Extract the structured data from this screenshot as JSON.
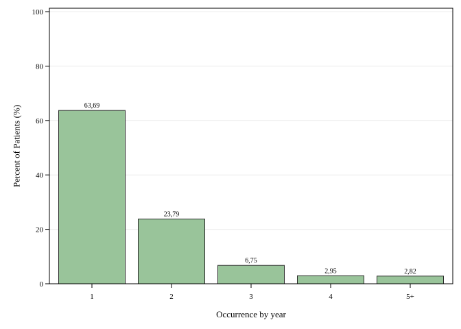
{
  "chart_data": {
    "type": "bar",
    "categories": [
      "1",
      "2",
      "3",
      "4",
      "5+"
    ],
    "values": [
      63.69,
      23.79,
      6.75,
      2.95,
      2.82
    ],
    "data_labels": [
      "63,69",
      "23,79",
      "6,75",
      "2,95",
      "2,82"
    ],
    "title": "",
    "xlabel": "Occurrence by year",
    "ylabel": "Percent of Patients (%)",
    "ylim": [
      0,
      100
    ],
    "yticks": [
      0,
      20,
      40,
      60,
      80,
      100
    ],
    "grid": true,
    "legend": "none"
  },
  "colors": {
    "bar_fill": "#99c49a",
    "bar_stroke": "#2b2b2b",
    "axis": "#000000",
    "grid": "#ececec"
  }
}
